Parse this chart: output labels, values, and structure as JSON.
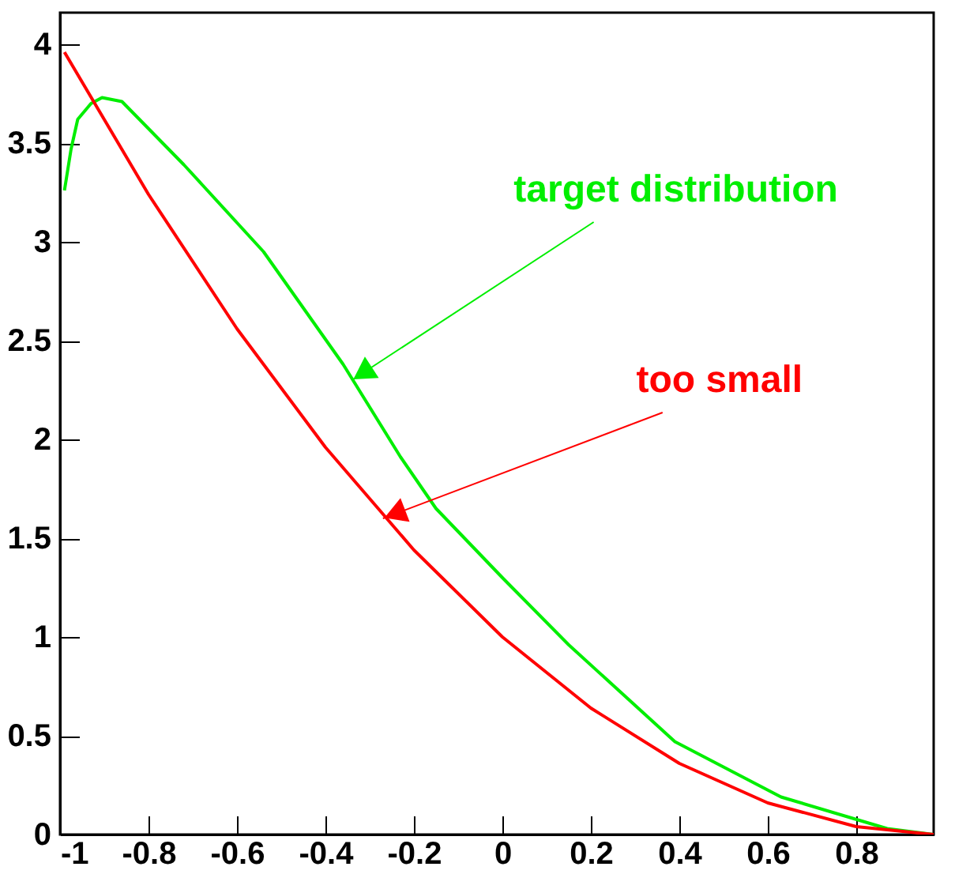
{
  "chart_data": {
    "type": "line",
    "xlim": [
      -1,
      0.975
    ],
    "ylim": [
      0,
      4.16
    ],
    "xticks": [
      -1,
      -0.8,
      -0.6,
      -0.4,
      -0.2,
      0,
      0.2,
      0.4,
      0.6,
      0.8
    ],
    "yticks": [
      0,
      0.5,
      1,
      1.5,
      2,
      2.5,
      3,
      3.5,
      4
    ],
    "grid": false,
    "marker": "none",
    "line_style": "solid",
    "series": [
      {
        "color": "#00ee00",
        "x": [
          -0.99,
          -0.975,
          -0.96,
          -0.93,
          -0.905,
          -0.86,
          -0.72,
          -0.54,
          -0.36,
          -0.23,
          -0.15,
          0,
          0.15,
          0.39,
          0.63,
          0.87,
          0.975
        ],
        "values": [
          3.26,
          3.47,
          3.62,
          3.7,
          3.73,
          3.71,
          3.39,
          2.95,
          2.38,
          1.91,
          1.65,
          1.3,
          0.96,
          0.47,
          0.19,
          0.03,
          0
        ]
      },
      {
        "color": "#ff0000",
        "x": [
          -0.99,
          -0.8,
          -0.6,
          -0.4,
          -0.2,
          0,
          0.2,
          0.4,
          0.6,
          0.8,
          0.975
        ],
        "values": [
          3.96,
          3.24,
          2.56,
          1.96,
          1.44,
          1,
          0.64,
          0.36,
          0.16,
          0.04,
          0
        ]
      }
    ],
    "annotations": [
      {
        "text": "target distribution",
        "x": -0.34,
        "y": 2.3
      },
      {
        "text": "too small",
        "x": -0.27,
        "y": 1.6
      }
    ]
  }
}
